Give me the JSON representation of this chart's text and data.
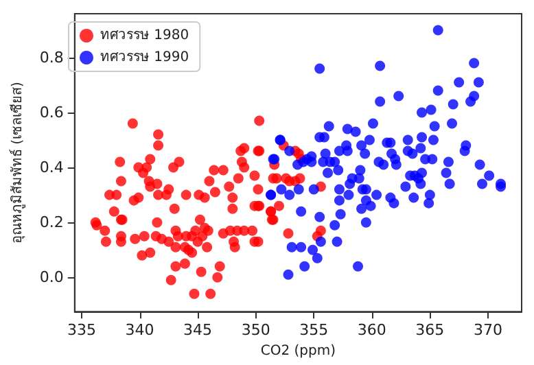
{
  "chart_data": {
    "type": "scatter",
    "xlabel": "CO2 (ppm)",
    "ylabel": "อุณหภูมิสัมพัทธ์ (เซลเซียส)",
    "xlim": [
      334.4,
      372.9
    ],
    "ylim": [
      -0.125,
      0.96
    ],
    "xticks": [
      335,
      340,
      345,
      350,
      355,
      360,
      365,
      370
    ],
    "yticks": [
      {
        "value": 0,
        "label": "0.0"
      },
      0.2,
      0.4,
      0.6,
      0.8
    ],
    "grid": false,
    "legend": "top left",
    "marker": "circle",
    "series": [
      {
        "name": "ทศวรรษ 1980",
        "color": "#ff0000",
        "x": [
          336.2,
          336.3,
          337.0,
          337.1,
          337.4,
          337.8,
          338.0,
          338.3,
          338.4,
          338.4,
          338.5,
          338.4,
          338.4,
          339.4,
          339.5,
          339.6,
          339.9,
          339.9,
          340.2,
          340.3,
          340.4,
          340.6,
          340.9,
          340.8,
          340.9,
          340.9,
          341.5,
          341.6,
          341.6,
          341.5,
          341.6,
          341.4,
          341.9,
          342.3,
          342.5,
          342.5,
          342.7,
          342.9,
          343.4,
          343.0,
          343.1,
          343.1,
          343.1,
          343.3,
          343.9,
          343.9,
          344.0,
          344.0,
          344.2,
          344.5,
          344.5,
          344.7,
          344.8,
          345.0,
          345.2,
          345.1,
          345.3,
          345.4,
          345.6,
          345.6,
          345.8,
          345.9,
          346.1,
          346.0,
          346.4,
          346.5,
          346.7,
          346.9,
          347.2,
          347.2,
          347.7,
          347.8,
          348.0,
          348.0,
          348.1,
          348.2,
          348.5,
          348.4,
          348.7,
          349.0,
          348.8,
          349.0,
          349.0,
          349.7,
          349.9,
          349.9,
          349.9,
          350.2,
          350.2,
          350.3,
          350.3,
          350.2,
          350.2,
          350.3,
          351.3,
          351.4,
          352.4,
          351.6,
          351.5,
          351.8,
          352.6,
          352.9,
          353.4,
          353.8,
          353.7,
          353.9,
          353.4,
          351.3,
          351.5,
          352.0,
          352.8,
          355.3,
          355.6,
          355.6
        ],
        "values": [
          0.2,
          0.19,
          0.17,
          0.13,
          0.3,
          0.24,
          0.3,
          0.42,
          0.35,
          0.21,
          0.21,
          0.15,
          0.13,
          0.56,
          0.28,
          0.14,
          0.29,
          0.4,
          0.08,
          0.38,
          0.15,
          0.4,
          0.43,
          0.35,
          0.33,
          0.09,
          0.2,
          0.52,
          0.48,
          0.34,
          0.3,
          0.15,
          0.14,
          0.3,
          0.32,
          0.13,
          -0.01,
          0.4,
          0.42,
          0.25,
          0.17,
          0.04,
          0.11,
          0.15,
          0.05,
          0.11,
          0.3,
          0.15,
          0.1,
          0.09,
          0.15,
          -0.06,
          0.17,
          0.13,
          0.21,
          0.3,
          0.02,
          0.15,
          0.29,
          0.18,
          0.11,
          0.17,
          -0.06,
          0.35,
          0.39,
          0.31,
          0.0,
          0.04,
          0.39,
          0.16,
          0.33,
          0.17,
          0.29,
          0.25,
          0.13,
          0.11,
          0.36,
          0.17,
          0.46,
          0.47,
          0.42,
          0.4,
          0.17,
          0.17,
          0.26,
          0.37,
          0.13,
          0.13,
          0.46,
          0.57,
          0.46,
          0.32,
          0.26,
          0.26,
          0.24,
          0.21,
          0.48,
          0.41,
          0.36,
          0.36,
          0.36,
          0.35,
          0.35,
          0.36,
          0.45,
          0.43,
          0.46,
          0.24,
          0.21,
          0.26,
          0.16,
          0.15,
          0.17,
          0.33
        ]
      },
      {
        "name": "ทศวรรษ 1990",
        "color": "#0000ff",
        "x": [
          351.3,
          351.6,
          352.1,
          355.5,
          360.7,
          365.7,
          368.8,
          369.2,
          367.5,
          365.7,
          360.7,
          362.3,
          368.8,
          368.5,
          367.0,
          365.1,
          364.3,
          366.9,
          365.4,
          360.1,
          356.3,
          355.5,
          355.9,
          357.9,
          358.6,
          352.1,
          352.9,
          351.5,
          356.0,
          357.2,
          357.8,
          357.9,
          359.1,
          359.4,
          359.8,
          361.3,
          361.6,
          361.7,
          360.6,
          361.0,
          362.0,
          362.1,
          363.1,
          363.1,
          363.5,
          364.2,
          364.3,
          364.6,
          365.2,
          365.3,
          363.7,
          363.3,
          364.3,
          364.2,
          364.0,
          362.9,
          363.6,
          365.0,
          364.9,
          366.6,
          366.4,
          366.7,
          368.1,
          368.0,
          369.3,
          370.1,
          369.5,
          371.1,
          371.1,
          361.6,
          361.9,
          360.4,
          359.9,
          359.5,
          359.2,
          359.5,
          359.1,
          359.5,
          359.0,
          358.9,
          358.3,
          358.1,
          358.0,
          357.2,
          357.1,
          356.8,
          356.4,
          356.2,
          355.8,
          357.2,
          357.3,
          356.8,
          357.0,
          355.5,
          355.6,
          355.0,
          354.9,
          355.3,
          354.2,
          353.9,
          353.1,
          352.8,
          358.8,
          353.9,
          352.9,
          352.2,
          351.3,
          353.7,
          353.6,
          354.1,
          354.8,
          354.4,
          354.8
        ],
        "values": [
          0.3,
          0.43,
          0.5,
          0.76,
          0.77,
          0.9,
          0.78,
          0.71,
          0.71,
          0.68,
          0.64,
          0.66,
          0.66,
          0.64,
          0.63,
          0.61,
          0.6,
          0.56,
          0.55,
          0.56,
          0.55,
          0.51,
          0.51,
          0.54,
          0.53,
          0.5,
          0.46,
          0.43,
          0.45,
          0.46,
          0.48,
          0.46,
          0.48,
          0.45,
          0.5,
          0.49,
          0.49,
          0.45,
          0.42,
          0.41,
          0.43,
          0.41,
          0.5,
          0.46,
          0.45,
          0.47,
          0.51,
          0.43,
          0.43,
          0.5,
          0.37,
          0.37,
          0.38,
          0.34,
          0.36,
          0.33,
          0.29,
          0.3,
          0.27,
          0.42,
          0.38,
          0.34,
          0.48,
          0.46,
          0.41,
          0.37,
          0.34,
          0.34,
          0.33,
          0.29,
          0.27,
          0.3,
          0.26,
          0.28,
          0.32,
          0.32,
          0.25,
          0.2,
          0.39,
          0.36,
          0.36,
          0.34,
          0.3,
          0.32,
          0.39,
          0.42,
          0.42,
          0.38,
          0.42,
          0.28,
          0.23,
          0.19,
          0.13,
          0.22,
          0.13,
          0.32,
          0.1,
          0.07,
          0.04,
          0.11,
          0.11,
          0.01,
          0.04,
          0.24,
          0.3,
          0.32,
          0.3,
          0.32,
          0.41,
          0.42,
          0.44,
          0.43,
          0.42
        ]
      }
    ]
  }
}
